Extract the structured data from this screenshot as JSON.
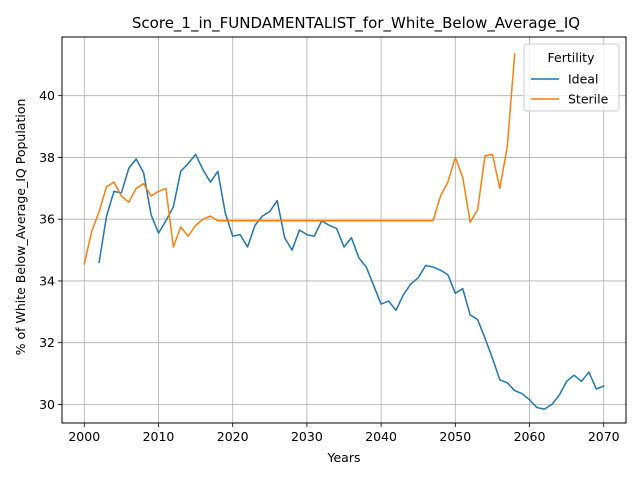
{
  "chart_data": {
    "type": "line",
    "title": "Score_1_in_FUNDAMENTALIST_for_White_Below_Average_IQ",
    "xlabel": "Years",
    "ylabel": "% of White Below_Average_IQ Population",
    "xlim": [
      1997,
      2073
    ],
    "ylim": [
      29.4,
      41.9
    ],
    "x_ticks": [
      2000,
      2010,
      2020,
      2030,
      2040,
      2050,
      2060,
      2070
    ],
    "y_ticks": [
      30,
      32,
      34,
      36,
      38,
      40
    ],
    "grid": true,
    "legend": {
      "title": "Fertility",
      "placement": "top-right"
    },
    "series": [
      {
        "name": "Ideal",
        "color": "#1f77b4",
        "x": [
          2002,
          2003,
          2004,
          2005,
          2006,
          2007,
          2008,
          2009,
          2010,
          2011,
          2012,
          2013,
          2014,
          2015,
          2016,
          2017,
          2018,
          2019,
          2020,
          2021,
          2022,
          2023,
          2024,
          2025,
          2026,
          2027,
          2028,
          2029,
          2030,
          2031,
          2032,
          2033,
          2034,
          2035,
          2036,
          2037,
          2038,
          2039,
          2040,
          2041,
          2042,
          2043,
          2044,
          2045,
          2046,
          2047,
          2048,
          2049,
          2050,
          2051,
          2052,
          2053,
          2054,
          2055,
          2056,
          2057,
          2058,
          2059,
          2060,
          2061,
          2062,
          2063,
          2064,
          2065,
          2066,
          2067,
          2068,
          2069,
          2070
        ],
        "values": [
          34.6,
          36.1,
          36.9,
          36.85,
          37.65,
          37.95,
          37.5,
          36.15,
          35.55,
          35.95,
          36.4,
          37.55,
          37.8,
          38.1,
          37.6,
          37.2,
          37.55,
          36.2,
          35.45,
          35.5,
          35.1,
          35.8,
          36.1,
          36.25,
          36.6,
          35.4,
          35.0,
          35.65,
          35.5,
          35.45,
          35.95,
          35.8,
          35.7,
          35.1,
          35.4,
          34.75,
          34.45,
          33.85,
          33.25,
          33.35,
          33.05,
          33.55,
          33.9,
          34.1,
          34.5,
          34.45,
          34.35,
          34.2,
          33.6,
          33.75,
          32.9,
          32.75,
          32.15,
          31.5,
          30.8,
          30.7,
          30.45,
          30.35,
          30.15,
          29.9,
          29.85,
          30.0,
          30.3,
          30.75,
          30.95,
          30.75,
          31.05,
          30.5,
          30.6
        ]
      },
      {
        "name": "Sterile",
        "color": "#ff7f0e",
        "x": [
          2000,
          2001,
          2002,
          2003,
          2004,
          2005,
          2006,
          2007,
          2008,
          2009,
          2010,
          2011,
          2012,
          2013,
          2014,
          2015,
          2016,
          2017,
          2018,
          2019,
          2020,
          2021,
          2022,
          2023,
          2024,
          2025,
          2026,
          2027,
          2028,
          2029,
          2030,
          2031,
          2032,
          2033,
          2034,
          2035,
          2036,
          2037,
          2038,
          2039,
          2040,
          2041,
          2042,
          2043,
          2044,
          2045,
          2046,
          2047,
          2048,
          2049,
          2050,
          2051,
          2052,
          2053,
          2054,
          2055,
          2056,
          2057,
          2058
        ],
        "values": [
          34.55,
          35.6,
          36.25,
          37.05,
          37.2,
          36.75,
          36.55,
          37.0,
          37.15,
          36.75,
          36.9,
          37.0,
          35.1,
          35.75,
          35.45,
          35.8,
          36.0,
          36.1,
          35.95,
          35.95,
          35.95,
          35.95,
          35.95,
          35.95,
          35.95,
          35.95,
          35.95,
          35.95,
          35.95,
          35.95,
          35.95,
          35.95,
          35.95,
          35.95,
          35.95,
          35.95,
          35.95,
          35.95,
          35.95,
          35.95,
          35.95,
          35.95,
          35.95,
          35.95,
          35.95,
          35.95,
          35.95,
          35.95,
          36.75,
          37.2,
          38.0,
          37.35,
          35.9,
          36.3,
          38.05,
          38.1,
          37.0,
          38.35,
          41.35
        ]
      }
    ]
  }
}
